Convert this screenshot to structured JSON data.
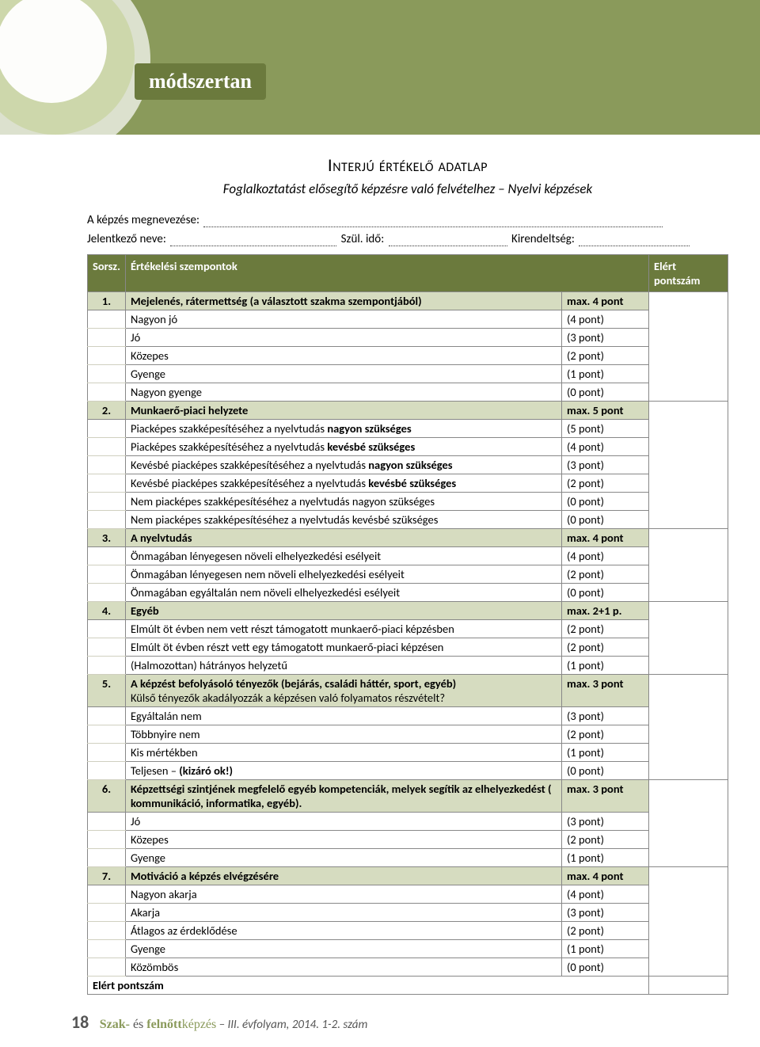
{
  "header": {
    "section_label": "módszertan"
  },
  "document": {
    "title": "Interjú értékelő adatlap",
    "subtitle": "Foglalkoztatást elősegítő képzésre való felvételhez – Nyelvi képzések",
    "field_course": "A képzés megnevezése:",
    "field_applicant": "Jelentkező neve:",
    "field_birth": "Szül. idő:",
    "field_dept": "Kirendeltség:"
  },
  "table": {
    "head": {
      "c1": "Sorsz.",
      "c2": "Értékelési szempontok",
      "c3": "",
      "c4": "Elért pontszám"
    },
    "result_label": "Elért pontszám",
    "sections": [
      {
        "num": "1.",
        "title": "Mejelenés, rátermettség (a választott szakma szempontjából)",
        "max": "max. 4 pont",
        "rows": [
          {
            "label": "Nagyon jó",
            "pts": "(4 pont)"
          },
          {
            "label": "Jó",
            "pts": "(3 pont)"
          },
          {
            "label": "Közepes",
            "pts": "(2 pont)"
          },
          {
            "label": "Gyenge",
            "pts": "(1 pont)"
          },
          {
            "label": "Nagyon gyenge",
            "pts": "(0 pont)"
          }
        ]
      },
      {
        "num": "2.",
        "title": "Munkaerő-piaci helyzete",
        "max": "max. 5 pont",
        "rows": [
          {
            "label": "Piacképes szakképesítéséhez a nyelvtudás <b>nagyon szükséges</b>",
            "pts": "(5 pont)"
          },
          {
            "label": "Piacképes szakképesítéséhez a nyelvtudás <b>kevésbé szükséges</b>",
            "pts": "(4 pont)"
          },
          {
            "label": "Kevésbé piacképes szakképesítéséhez a nyelvtudás <b>nagyon szükséges</b>",
            "pts": "(3 pont)"
          },
          {
            "label": "Kevésbé piacképes szakképesítéséhez a nyelvtudás <b>kevésbé szükséges</b>",
            "pts": "(2 pont)"
          },
          {
            "label": "Nem piacképes szakképesítéséhez a nyelvtudás nagyon szükséges",
            "pts": "(0 pont)"
          },
          {
            "label": "Nem piacképes szakképesítéséhez a nyelvtudás kevésbé szükséges",
            "pts": "(0 pont)"
          }
        ]
      },
      {
        "num": "3.",
        "title": "A nyelvtudás",
        "max": "max. 4 pont",
        "rows": [
          {
            "label": "Önmagában lényegesen növeli elhelyezkedési esélyeit",
            "pts": "(4 pont)"
          },
          {
            "label": "Önmagában lényegesen nem növeli elhelyezkedési esélyeit",
            "pts": "(2 pont)"
          },
          {
            "label": "Önmagában egyáltalán nem növeli elhelyezkedési esélyeit",
            "pts": "(0 pont)"
          }
        ]
      },
      {
        "num": "4.",
        "title": "Egyéb",
        "max": "max. 2+1 p.",
        "rows": [
          {
            "label": "Elmúlt öt évben nem vett részt támogatott munkaerő-piaci képzésben",
            "pts": "(2 pont)"
          },
          {
            "label": "Elmúlt öt évben részt vett egy támogatott munkaerő-piaci képzésen",
            "pts": "(2 pont)"
          },
          {
            "label": "(Halmozottan) hátrányos helyzetű",
            "pts": "(1 pont)"
          }
        ]
      },
      {
        "num": "5.",
        "title": "A képzést befolyásoló tényezők (bejárás, családi háttér, sport, egyéb)",
        "title2": "Külső tényezők akadályozzák a képzésen való folyamatos részvételt?",
        "max": "max. 3 pont",
        "rows": [
          {
            "label": "Egyáltalán nem",
            "pts": "(3 pont)"
          },
          {
            "label": "Többnyire nem",
            "pts": "(2 pont)"
          },
          {
            "label": "Kis mértékben",
            "pts": "(1 pont)"
          },
          {
            "label": "Teljesen – <b>(kizáró ok!)</b>",
            "pts": "(0 pont)"
          }
        ]
      },
      {
        "num": "6.",
        "title": "Képzettségi szintjének megfelelő egyéb kompetenciák, melyek segítik az elhelyezkedést ( kommunikáció, informatika, egyéb).",
        "max": "max. 3 pont",
        "rows": [
          {
            "label": "Jó",
            "pts": "(3 pont)"
          },
          {
            "label": "Közepes",
            "pts": "(2 pont)"
          },
          {
            "label": "Gyenge",
            "pts": "(1 pont)"
          }
        ]
      },
      {
        "num": "7.",
        "title": "Motiváció a képzés elvégzésére",
        "max": "max. 4 pont",
        "rows": [
          {
            "label": "Nagyon akarja",
            "pts": "(4 pont)"
          },
          {
            "label": "Akarja",
            "pts": "(3 pont)"
          },
          {
            "label": "Átlagos az érdeklődése",
            "pts": "(2 pont)"
          },
          {
            "label": "Gyenge",
            "pts": "(1 pont)"
          },
          {
            "label": "Közömbös",
            "pts": "(0 pont)"
          }
        ]
      }
    ]
  },
  "footer": {
    "page": "18",
    "brand1": "Szak-",
    "brand2": " és ",
    "brand3": "felnőtt",
    "brand4": "képzés",
    "tail": " – III. évfolyam, 2014. 1-2. szám"
  }
}
